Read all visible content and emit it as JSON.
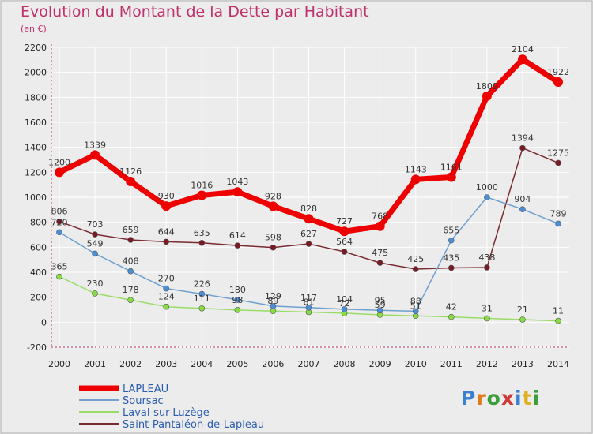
{
  "chart_data": {
    "type": "line",
    "title": "Evolution du Montant de la Dette par Habitant",
    "subtitle": "(en €)",
    "xlabel": "",
    "ylabel": "",
    "x": [
      "2000",
      "2001",
      "2002",
      "2003",
      "2004",
      "2005",
      "2006",
      "2007",
      "2008",
      "2009",
      "2010",
      "2011",
      "2012",
      "2013",
      "2014"
    ],
    "ylim": [
      -200,
      2200
    ],
    "yticks": [
      -200,
      0,
      200,
      400,
      600,
      800,
      1000,
      1200,
      1400,
      1600,
      1800,
      2000,
      2200
    ],
    "grid": true,
    "legend": "bottom-left",
    "series": [
      {
        "name": "LAPLEAU",
        "color": "#ee0000",
        "width": 7,
        "marker": 6,
        "values": [
          1200,
          1339,
          1126,
          930,
          1016,
          1043,
          928,
          828,
          727,
          768,
          1143,
          1161,
          1809,
          2104,
          1922
        ],
        "labels": [
          "1200",
          "1339",
          "1126",
          "930",
          "1016",
          "1043",
          "928",
          "828",
          "727",
          "768",
          "1143",
          "1161",
          "1809",
          "2104",
          "1922"
        ]
      },
      {
        "name": "Soursac",
        "color": "#6fa0d0",
        "width": 1.5,
        "marker": 3.5,
        "fill": "#4a90d9",
        "values": [
          720,
          549,
          408,
          270,
          226,
          180,
          129,
          117,
          104,
          95,
          88,
          655,
          1000,
          904,
          789
        ],
        "labels": [
          "720",
          "549",
          "408",
          "270",
          "226",
          "180",
          "129",
          "117",
          "104",
          "95",
          "88",
          "655",
          "1000",
          "904",
          "789"
        ]
      },
      {
        "name": "Laval-sur-Luzège",
        "color": "#99dd66",
        "width": 1.5,
        "marker": 3.5,
        "fill": "#88dd44",
        "values": [
          365,
          230,
          178,
          124,
          111,
          98,
          89,
          81,
          72,
          59,
          51,
          42,
          31,
          21,
          11
        ],
        "labels": [
          "365",
          "230",
          "178",
          "124",
          "111",
          "98",
          "89",
          "81",
          "72",
          "59",
          "51",
          "42",
          "31",
          "21",
          "11"
        ]
      },
      {
        "name": "Saint-Pantaléon-de-Lapleau",
        "color": "#7a2a30",
        "width": 1.5,
        "marker": 3.5,
        "fill": "#7a1a22",
        "values": [
          806,
          703,
          659,
          644,
          635,
          614,
          598,
          627,
          564,
          475,
          425,
          435,
          438,
          1394,
          1275
        ],
        "labels": [
          "806",
          "703",
          "659",
          "644",
          "635",
          "614",
          "598",
          "627",
          "564",
          "475",
          "425",
          "435",
          "438",
          "1394",
          "1275"
        ]
      }
    ]
  },
  "logo": {
    "text": "Proxiti",
    "letters": [
      "P",
      "r",
      "o",
      "x",
      "i",
      "t",
      "i"
    ],
    "colors": [
      "#3a7fd0",
      "#e07b1a",
      "#3a9f3a",
      "#d03a3a",
      "#3a7fd0",
      "#e0b020",
      "#3a9f3a"
    ]
  }
}
